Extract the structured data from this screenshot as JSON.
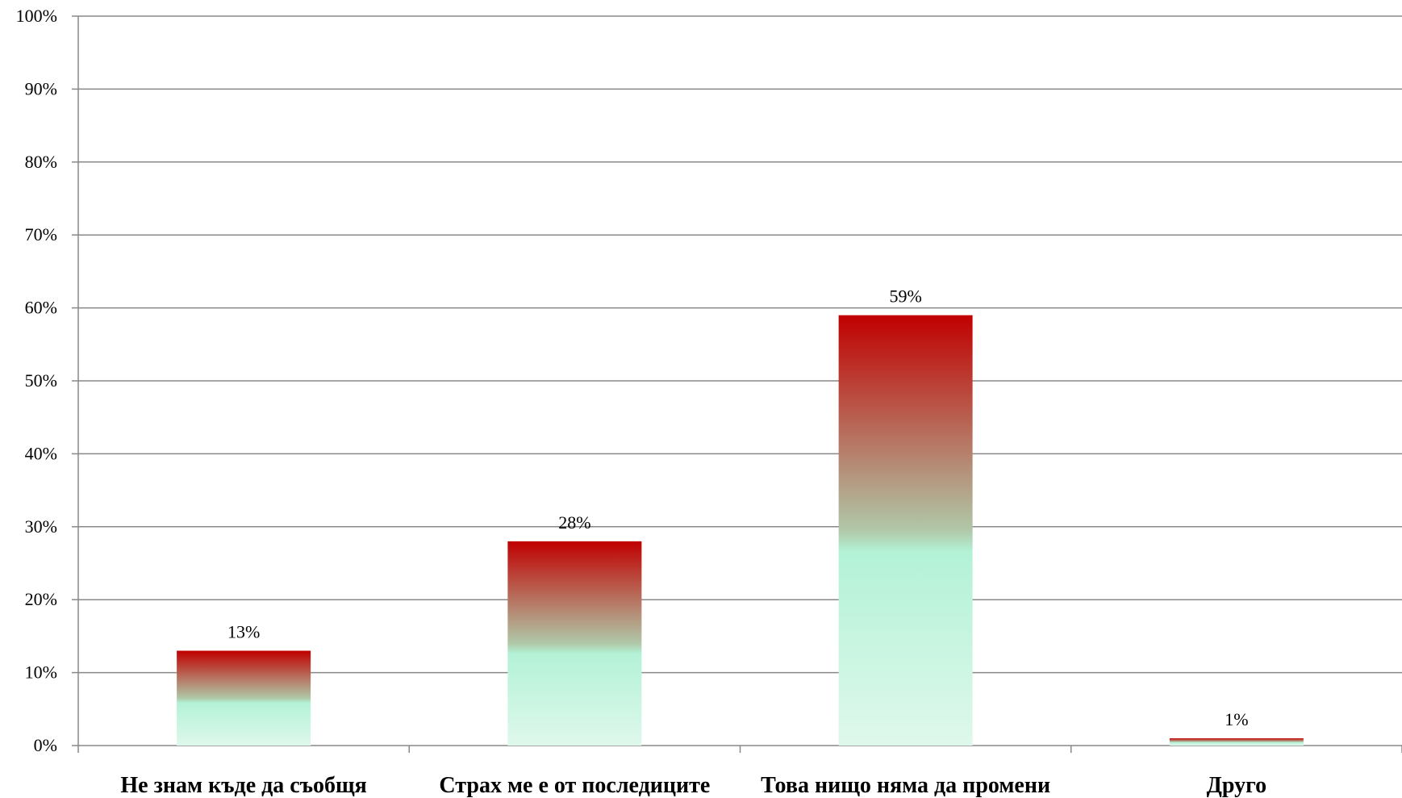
{
  "chart_data": {
    "type": "bar",
    "categories": [
      "Не знам къде да съобщя",
      "Страх ме е от последиците",
      "Това нищо няма да промени",
      "Друго"
    ],
    "values": [
      13,
      28,
      59,
      1
    ],
    "data_labels": [
      "13%",
      "28%",
      "59%",
      "1%"
    ],
    "ylim": [
      0,
      100
    ],
    "yticks": [
      0,
      10,
      20,
      30,
      40,
      50,
      60,
      70,
      80,
      90,
      100
    ],
    "ytick_labels": [
      "0%",
      "10%",
      "20%",
      "30%",
      "40%",
      "50%",
      "60%",
      "70%",
      "80%",
      "90%",
      "100%"
    ],
    "grid": true,
    "legend": "none",
    "colors": {
      "bar_top": "#c00000",
      "bar_mid": "#b0c8a8",
      "bar_low": "#b3f2d6",
      "bar_bottom": "#dff8ec",
      "gridline": "#888888",
      "axis": "#888888"
    }
  }
}
